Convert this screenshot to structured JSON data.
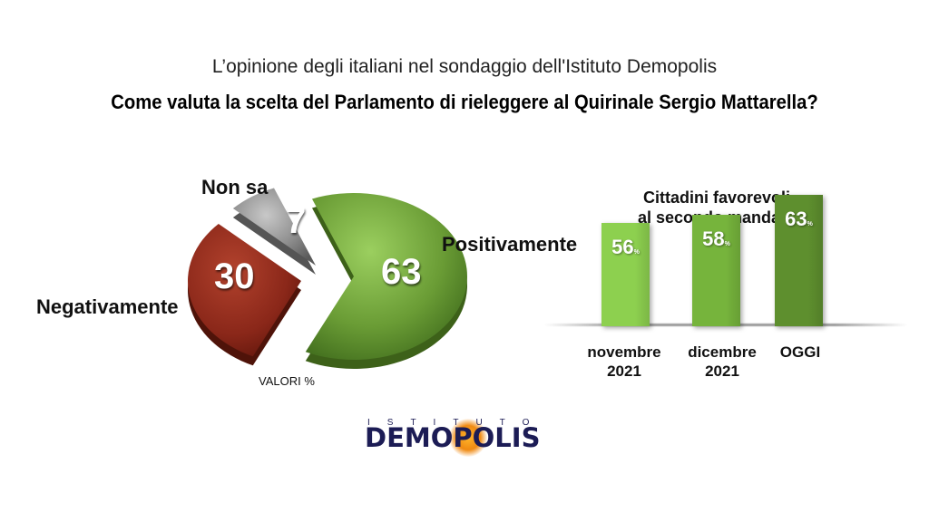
{
  "header": {
    "subtitle": "L’opinione degli italiani nel sondaggio dell'Istituto Demopolis",
    "title": "Come valuta la scelta del Parlamento di rieleggere al Quirinale Sergio Mattarella?"
  },
  "chart_data": [
    {
      "type": "pie",
      "slices": [
        {
          "label": "Positivamente",
          "value": 63,
          "color": "#5e8e2a"
        },
        {
          "label": "Negativamente",
          "value": 30,
          "color": "#8e2a1c"
        },
        {
          "label": "Non sa",
          "value": 7,
          "color": "#8a8a8a"
        }
      ],
      "note": "VALORI %"
    },
    {
      "type": "bar",
      "title": "Cittadini favorevoli al secondo mandato",
      "title_lines": [
        "Cittadini favorevoli",
        "al secondo mandato"
      ],
      "categories": [
        "novembre 2021",
        "dicembre 2021",
        "OGGI"
      ],
      "category_lines": [
        [
          "novembre",
          "2021"
        ],
        [
          "dicembre",
          "2021"
        ],
        [
          "OGGI"
        ]
      ],
      "values": [
        56,
        58,
        63
      ],
      "value_unit": "%",
      "colors": [
        "#8dd04f",
        "#76b43c",
        "#5e8f2e"
      ]
    }
  ],
  "logo": {
    "top_text": "ISTITUTO",
    "main_text": "DEMOPOLIS"
  }
}
